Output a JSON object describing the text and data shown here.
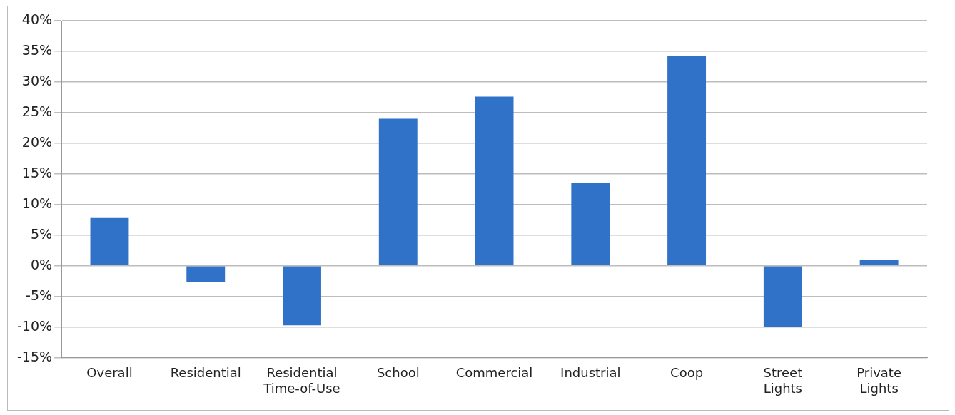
{
  "chart_data": {
    "type": "bar",
    "categories": [
      "Overall",
      "Residential",
      "Residential Time-of-Use",
      "School",
      "Commercial",
      "Industrial",
      "Coop",
      "Street Lights",
      "Private Lights"
    ],
    "values": [
      7.8,
      -2.6,
      -9.7,
      24,
      27.6,
      13.5,
      34.3,
      -10,
      0.9
    ],
    "color": "#3072c8",
    "ylim": [
      -15,
      40
    ],
    "yticks": [
      {
        "value": -15,
        "label": "-15%"
      },
      {
        "value": -10,
        "label": "-10%"
      },
      {
        "value": -5,
        "label": "-5%"
      },
      {
        "value": 0,
        "label": "0%"
      },
      {
        "value": 5,
        "label": "5%"
      },
      {
        "value": 10,
        "label": "10%"
      },
      {
        "value": 15,
        "label": "15%"
      },
      {
        "value": 20,
        "label": "20%"
      },
      {
        "value": 25,
        "label": "25%"
      },
      {
        "value": 30,
        "label": "30%"
      },
      {
        "value": 35,
        "label": "35%"
      },
      {
        "value": 40,
        "label": "40%"
      }
    ],
    "grid": "y"
  }
}
